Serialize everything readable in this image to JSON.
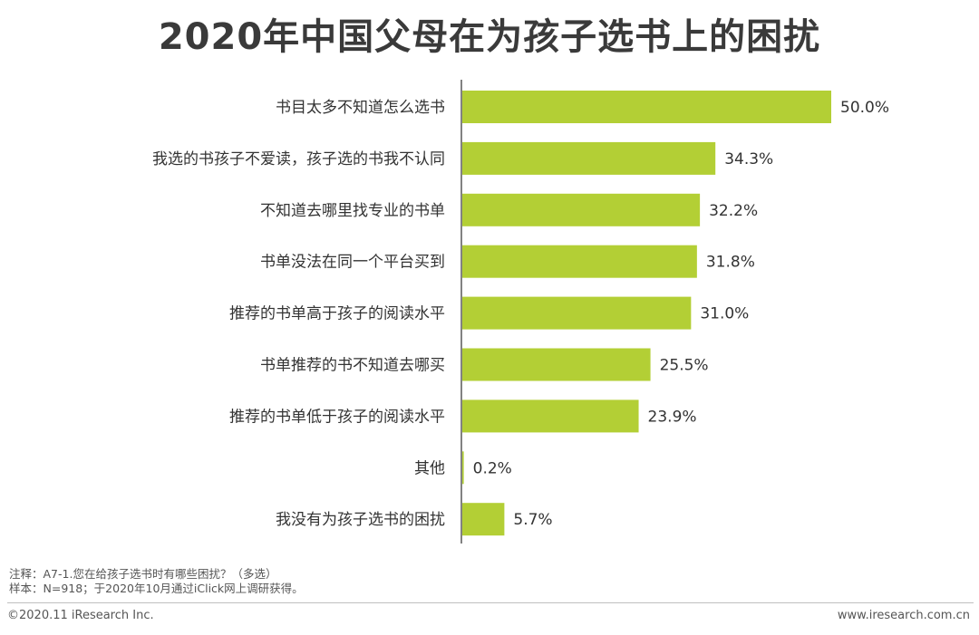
{
  "colors": {
    "bar": "#b3cf35",
    "axis": "#595959"
  },
  "notes": {
    "line1": "注释：A7-1.您在给孩子选书时有哪些困扰？（多选）",
    "line2": "样本：N=918；于2020年10月通过iClick网上调研获得。"
  },
  "footer": {
    "copyright": "©2020.11 iResearch Inc.",
    "website": "www.iresearch.com.cn"
  },
  "chart_data": {
    "type": "bar",
    "orientation": "horizontal",
    "title": "2020年中国父母在为孩子选书上的困扰",
    "categories": [
      "书目太多不知道怎么选书",
      "我选的书孩子不爱读，孩子选的书我不认同",
      "不知道去哪里找专业的书单",
      "书单没法在同一个平台买到",
      "推荐的书单高于孩子的阅读水平",
      "书单推荐的书不知道去哪买",
      "推荐的书单低于孩子的阅读水平",
      "其他",
      "我没有为孩子选书的困扰"
    ],
    "values": [
      50.0,
      34.3,
      32.2,
      31.8,
      31.0,
      25.5,
      23.9,
      0.2,
      5.7
    ],
    "value_labels": [
      "50.0%",
      "34.3%",
      "32.2%",
      "31.8%",
      "31.0%",
      "25.5%",
      "23.9%",
      "0.2%",
      "5.7%"
    ],
    "xlim": [
      0,
      50
    ],
    "grid": false,
    "legend": "none"
  }
}
